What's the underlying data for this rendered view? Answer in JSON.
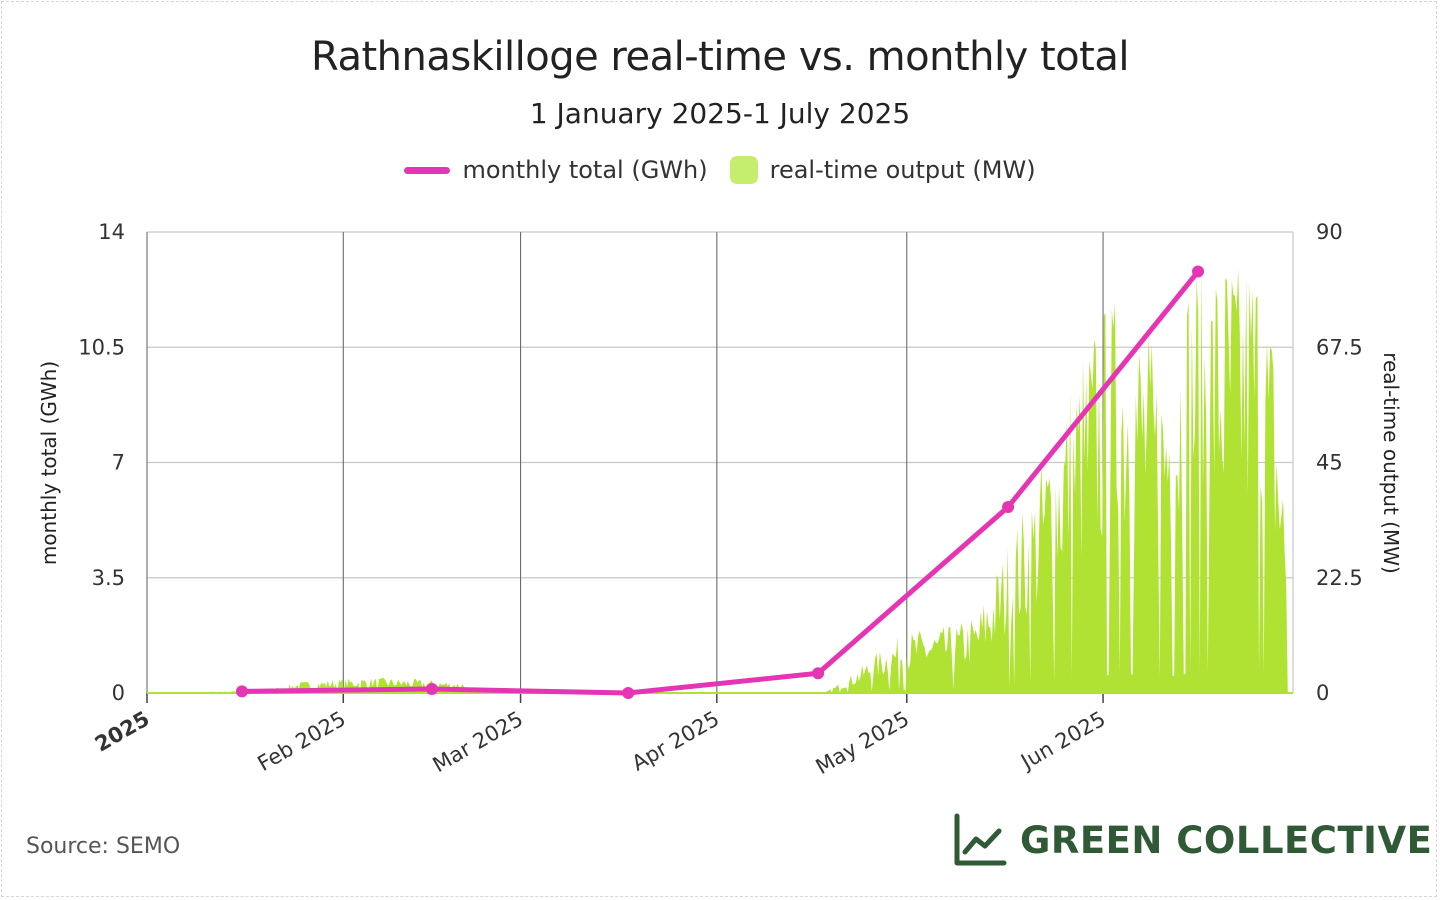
{
  "chart_data": {
    "type": "line+bar",
    "title": "Rathnaskilloge real-time vs. monthly total",
    "subtitle": "1 January 2025-1 July 2025",
    "legend": [
      "monthly total (GWh)",
      "real-time output (MW)"
    ],
    "legend_placement": "top-center",
    "grid": true,
    "x_range": [
      "2025-01-01",
      "2025-06-30"
    ],
    "x_ticks": [
      "2025",
      "Feb 2025",
      "Mar 2025",
      "Apr 2025",
      "May 2025",
      "Jun 2025"
    ],
    "y_left": {
      "label": "monthly total (GWh)",
      "range": [
        0,
        14
      ],
      "ticks": [
        "0",
        "3.5",
        "7",
        "10.5",
        "14"
      ]
    },
    "y_right": {
      "label": "real-time output (MW)",
      "range": [
        0,
        90
      ],
      "ticks": [
        "0",
        "22.5",
        "45",
        "67.5",
        "90"
      ]
    },
    "series": [
      {
        "name": "monthly total (GWh)",
        "axis": "left",
        "kind": "line",
        "color": "#e535b4",
        "points": [
          {
            "x": "2025-01-16",
            "y": 0.05
          },
          {
            "x": "2025-02-15",
            "y": 0.12
          },
          {
            "x": "2025-03-18",
            "y": 0.0
          },
          {
            "x": "2025-04-17",
            "y": 0.6
          },
          {
            "x": "2025-05-17",
            "y": 5.65
          },
          {
            "x": "2025-06-16",
            "y": 12.8
          }
        ]
      },
      {
        "name": "real-time output (MW)",
        "axis": "right",
        "kind": "area",
        "color": "#b0e233",
        "envelope": [
          {
            "x": "2025-01-01",
            "y": 0
          },
          {
            "x": "2025-01-20",
            "y": 0.5
          },
          {
            "x": "2025-01-25",
            "y": 2
          },
          {
            "x": "2025-01-31",
            "y": 2.5
          },
          {
            "x": "2025-02-05",
            "y": 2.8
          },
          {
            "x": "2025-02-12",
            "y": 2.5
          },
          {
            "x": "2025-02-20",
            "y": 2
          },
          {
            "x": "2025-02-21",
            "y": 0
          },
          {
            "x": "2025-04-18",
            "y": 0
          },
          {
            "x": "2025-04-22",
            "y": 3
          },
          {
            "x": "2025-04-27",
            "y": 8
          },
          {
            "x": "2025-05-01",
            "y": 11
          },
          {
            "x": "2025-05-08",
            "y": 12
          },
          {
            "x": "2025-05-12",
            "y": 14
          },
          {
            "x": "2025-05-15",
            "y": 22
          },
          {
            "x": "2025-05-21",
            "y": 38
          },
          {
            "x": "2025-05-26",
            "y": 55
          },
          {
            "x": "2025-05-31",
            "y": 68
          },
          {
            "x": "2025-06-05",
            "y": 74
          },
          {
            "x": "2025-06-10",
            "y": 60
          },
          {
            "x": "2025-06-15",
            "y": 78
          },
          {
            "x": "2025-06-20",
            "y": 80
          },
          {
            "x": "2025-06-25",
            "y": 82
          },
          {
            "x": "2025-06-28",
            "y": 65
          },
          {
            "x": "2025-06-30",
            "y": 32
          }
        ]
      }
    ]
  },
  "source": "Source: SEMO",
  "brand": "GREEN COLLECTIVE",
  "colors": {
    "line": "#e535b4",
    "area": "#b0e233",
    "legend_area": "#c6ee6e",
    "brand": "#2f5a35",
    "grid": "#c8c8c8"
  }
}
